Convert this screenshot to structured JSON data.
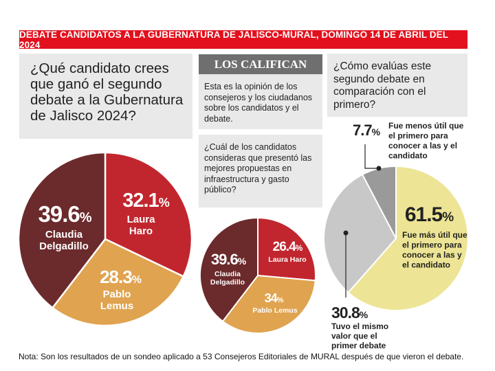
{
  "banner": "DEBATE CANDIDATOS A LA GUBERNATURA DE  JALISCO-MURAL, DOMINGO 14 DE ABRIL DEL 2024",
  "q1": "¿Qué candidato crees que ganó el segundo debate a la Gubernatura de Jalisco 2024?",
  "califican": {
    "title": "LOS CALIFICAN",
    "text": "Esta es la opinión de los consejeros y los ciudadanos sobre los candidatos y el debate."
  },
  "q2": "¿Cuál de los candidatos consideras que presentó las mejores propuestas en infraestructura y gasto público?",
  "q3": "¿Cómo evalúas este segundo debate en comparación con el primero?",
  "note": "Nota: Son los resultados de un sondeo aplicado a 53 Consejeros Editoriales de MURAL después de que vieron el debate.",
  "chart_data": [
    {
      "type": "pie",
      "title": "¿Qué candidato crees que ganó el segundo debate a la Gubernatura de Jalisco 2024?",
      "slices": [
        {
          "label": "Laura Haro",
          "value": 32.1,
          "value_text": "32.1%",
          "color": "#c1262e"
        },
        {
          "label": "Pablo Lemus",
          "value": 28.3,
          "value_text": "28.3%",
          "color": "#e0a34f"
        },
        {
          "label": "Claudia Delgadillo",
          "value": 39.6,
          "value_text": "39.6%",
          "color": "#6b2a2c"
        }
      ]
    },
    {
      "type": "pie",
      "title": "¿Cuál de los candidatos consideras que presentó las mejores propuestas en infraestructura y gasto público?",
      "slices": [
        {
          "label": "Laura Haro",
          "value": 26.4,
          "value_text": "26.4%",
          "color": "#c1262e"
        },
        {
          "label": "Pablo Lemus",
          "value": 34,
          "value_text": "34%",
          "color": "#e0a34f"
        },
        {
          "label": "Claudia Delgadillo",
          "value": 39.6,
          "value_text": "39.6%",
          "color": "#6b2a2c"
        }
      ]
    },
    {
      "type": "pie",
      "title": "¿Cómo evalúas este segundo debate en comparación con el primero?",
      "slices": [
        {
          "label": "Fue más útil que el primero para conocer a las y el candidato",
          "value": 61.5,
          "value_text": "61.5%",
          "color": "#ede595"
        },
        {
          "label": "Tuvo el mismo valor que el primer debate",
          "value": 30.8,
          "value_text": "30.8%",
          "color": "#c8c8c8"
        },
        {
          "label": "Fue menos útil que el primero para conocer a las y el candidato",
          "value": 7.7,
          "value_text": "7.7%",
          "color": "#9a9a9a"
        }
      ]
    }
  ]
}
